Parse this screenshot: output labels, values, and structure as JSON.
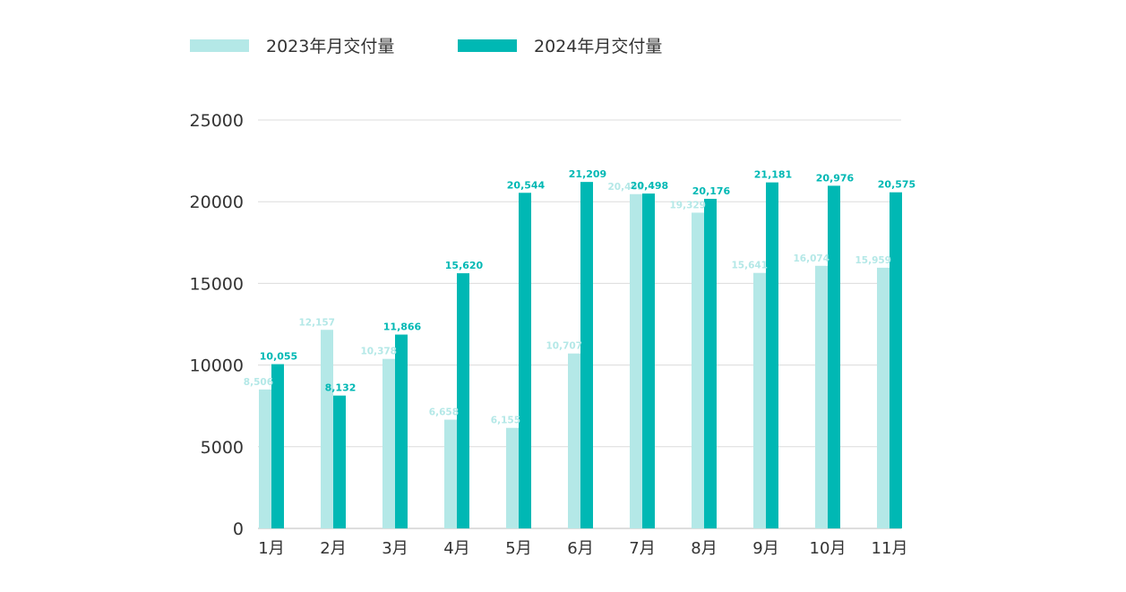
{
  "chart_data": {
    "type": "bar",
    "title": "",
    "xlabel": "",
    "ylabel": "",
    "ylim": [
      0,
      25000
    ],
    "yticks": [
      0,
      5000,
      10000,
      15000,
      20000,
      25000
    ],
    "grid": true,
    "legend_position": "top-left",
    "categories": [
      "1月",
      "2月",
      "3月",
      "4月",
      "5月",
      "6月",
      "7月",
      "8月",
      "9月",
      "10月",
      "11月"
    ],
    "series": [
      {
        "name": "2023年月交付量",
        "color": "#b4e8e7",
        "values": [
          8506,
          12157,
          10378,
          6658,
          6155,
          10707,
          20463,
          19329,
          15641,
          16074,
          15959
        ],
        "labels": [
          "8,506",
          "12,157",
          "10,378",
          "6,658",
          "6,155",
          "10,707",
          "20,463",
          "19,329",
          "15,641",
          "16,074",
          "15,959"
        ]
      },
      {
        "name": "2024年月交付量",
        "color": "#00b8b4",
        "values": [
          10055,
          8132,
          11866,
          15620,
          20544,
          21209,
          20498,
          20176,
          21181,
          20976,
          20575
        ],
        "labels": [
          "10,055",
          "8,132",
          "11,866",
          "15,620",
          "20,544",
          "21,209",
          "20,498",
          "20,176",
          "21,181",
          "20,976",
          "20,575"
        ]
      }
    ]
  }
}
